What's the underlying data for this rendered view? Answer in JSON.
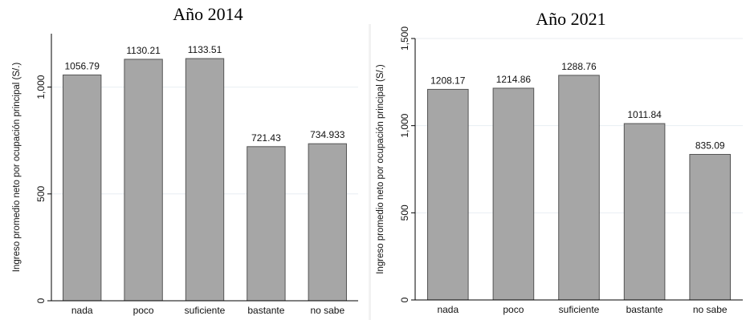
{
  "colors": {
    "bar": "#a6a6a6",
    "bar_stroke": "#555555",
    "grid": "#e8eef2",
    "axis": "#000000"
  },
  "chart_data": [
    {
      "type": "bar",
      "title": "Año 2014",
      "xlabel": "",
      "ylabel": "Ingreso promedio neto por ocupación principal (S/.)",
      "ylim": [
        0,
        1250
      ],
      "yticks": [
        0,
        500,
        1000
      ],
      "yticklabels": [
        "0",
        "500",
        "1,000"
      ],
      "grid": true,
      "categories": [
        "nada",
        "poco",
        "suficiente",
        "bastante",
        "no sabe"
      ],
      "values": [
        1056.79,
        1130.21,
        1133.51,
        721.43,
        734.933
      ],
      "data_labels": [
        "1056.79",
        "1130.21",
        "1133.51",
        "721.43",
        "734.933"
      ]
    },
    {
      "type": "bar",
      "title": "Año 2021",
      "xlabel": "",
      "ylabel": "Ingreso promedio neto por ocupación principal (S/.)",
      "ylim": [
        0,
        1500
      ],
      "yticks": [
        0,
        500,
        1000,
        1500
      ],
      "yticklabels": [
        "0",
        "500",
        "1,000",
        "1,500"
      ],
      "grid": true,
      "categories": [
        "nada",
        "poco",
        "suficiente",
        "bastante",
        "no sabe"
      ],
      "values": [
        1208.17,
        1214.86,
        1288.76,
        1011.84,
        835.09
      ],
      "data_labels": [
        "1208.17",
        "1214.86",
        "1288.76",
        "1011.84",
        "835.09"
      ]
    }
  ]
}
